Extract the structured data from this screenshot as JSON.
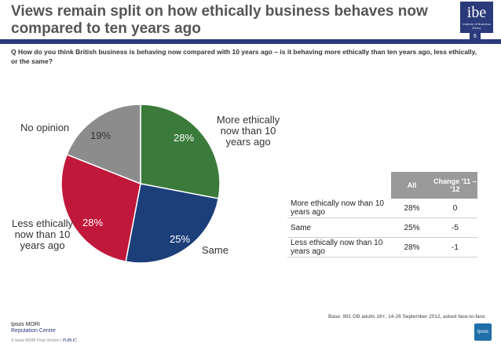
{
  "title": "Views remain split on how ethically business behaves now compared to ten years ago",
  "logo": {
    "mark": "ibe",
    "sub": "Institute of Business Ethics"
  },
  "page_number": "6",
  "question": "Q  How do you think British business is behaving now compared with 10 years ago – is it behaving more ethically than ten years ago, less ethically, or the same?",
  "chart_data": {
    "type": "pie",
    "title": "",
    "slices": [
      {
        "label": "More ethically now than 10 years ago",
        "value": 28,
        "display": "28%",
        "color": "#3a7a3a"
      },
      {
        "label": "Same",
        "value": 25,
        "display": "25%",
        "color": "#1c3f7a"
      },
      {
        "label": "Less ethically now than 10 years ago",
        "value": 28,
        "display": "28%",
        "color": "#c0183a"
      },
      {
        "label": "No opinion",
        "value": 19,
        "display": "19%",
        "color": "#8c8c8c"
      }
    ]
  },
  "table": {
    "headers": [
      "All",
      "Change '11 – '12"
    ],
    "rows": [
      {
        "label": "More ethically now than 10 years ago",
        "all": "28%",
        "change": "0"
      },
      {
        "label": "Same",
        "all": "25%",
        "change": "-5"
      },
      {
        "label": "Less ethically now than 10 years ago",
        "all": "28%",
        "change": "-1"
      }
    ]
  },
  "base_note": "Base: 991 GB adults 16+, 14-26 September 2012, asked face-to-face",
  "footer": {
    "line1": "Ipsos MORI",
    "line2": "Reputation Centre",
    "copyright": "© Ipsos MORI    Final Version | ",
    "classification": "PUBLIC"
  },
  "ipsos_logo": "Ipsos"
}
